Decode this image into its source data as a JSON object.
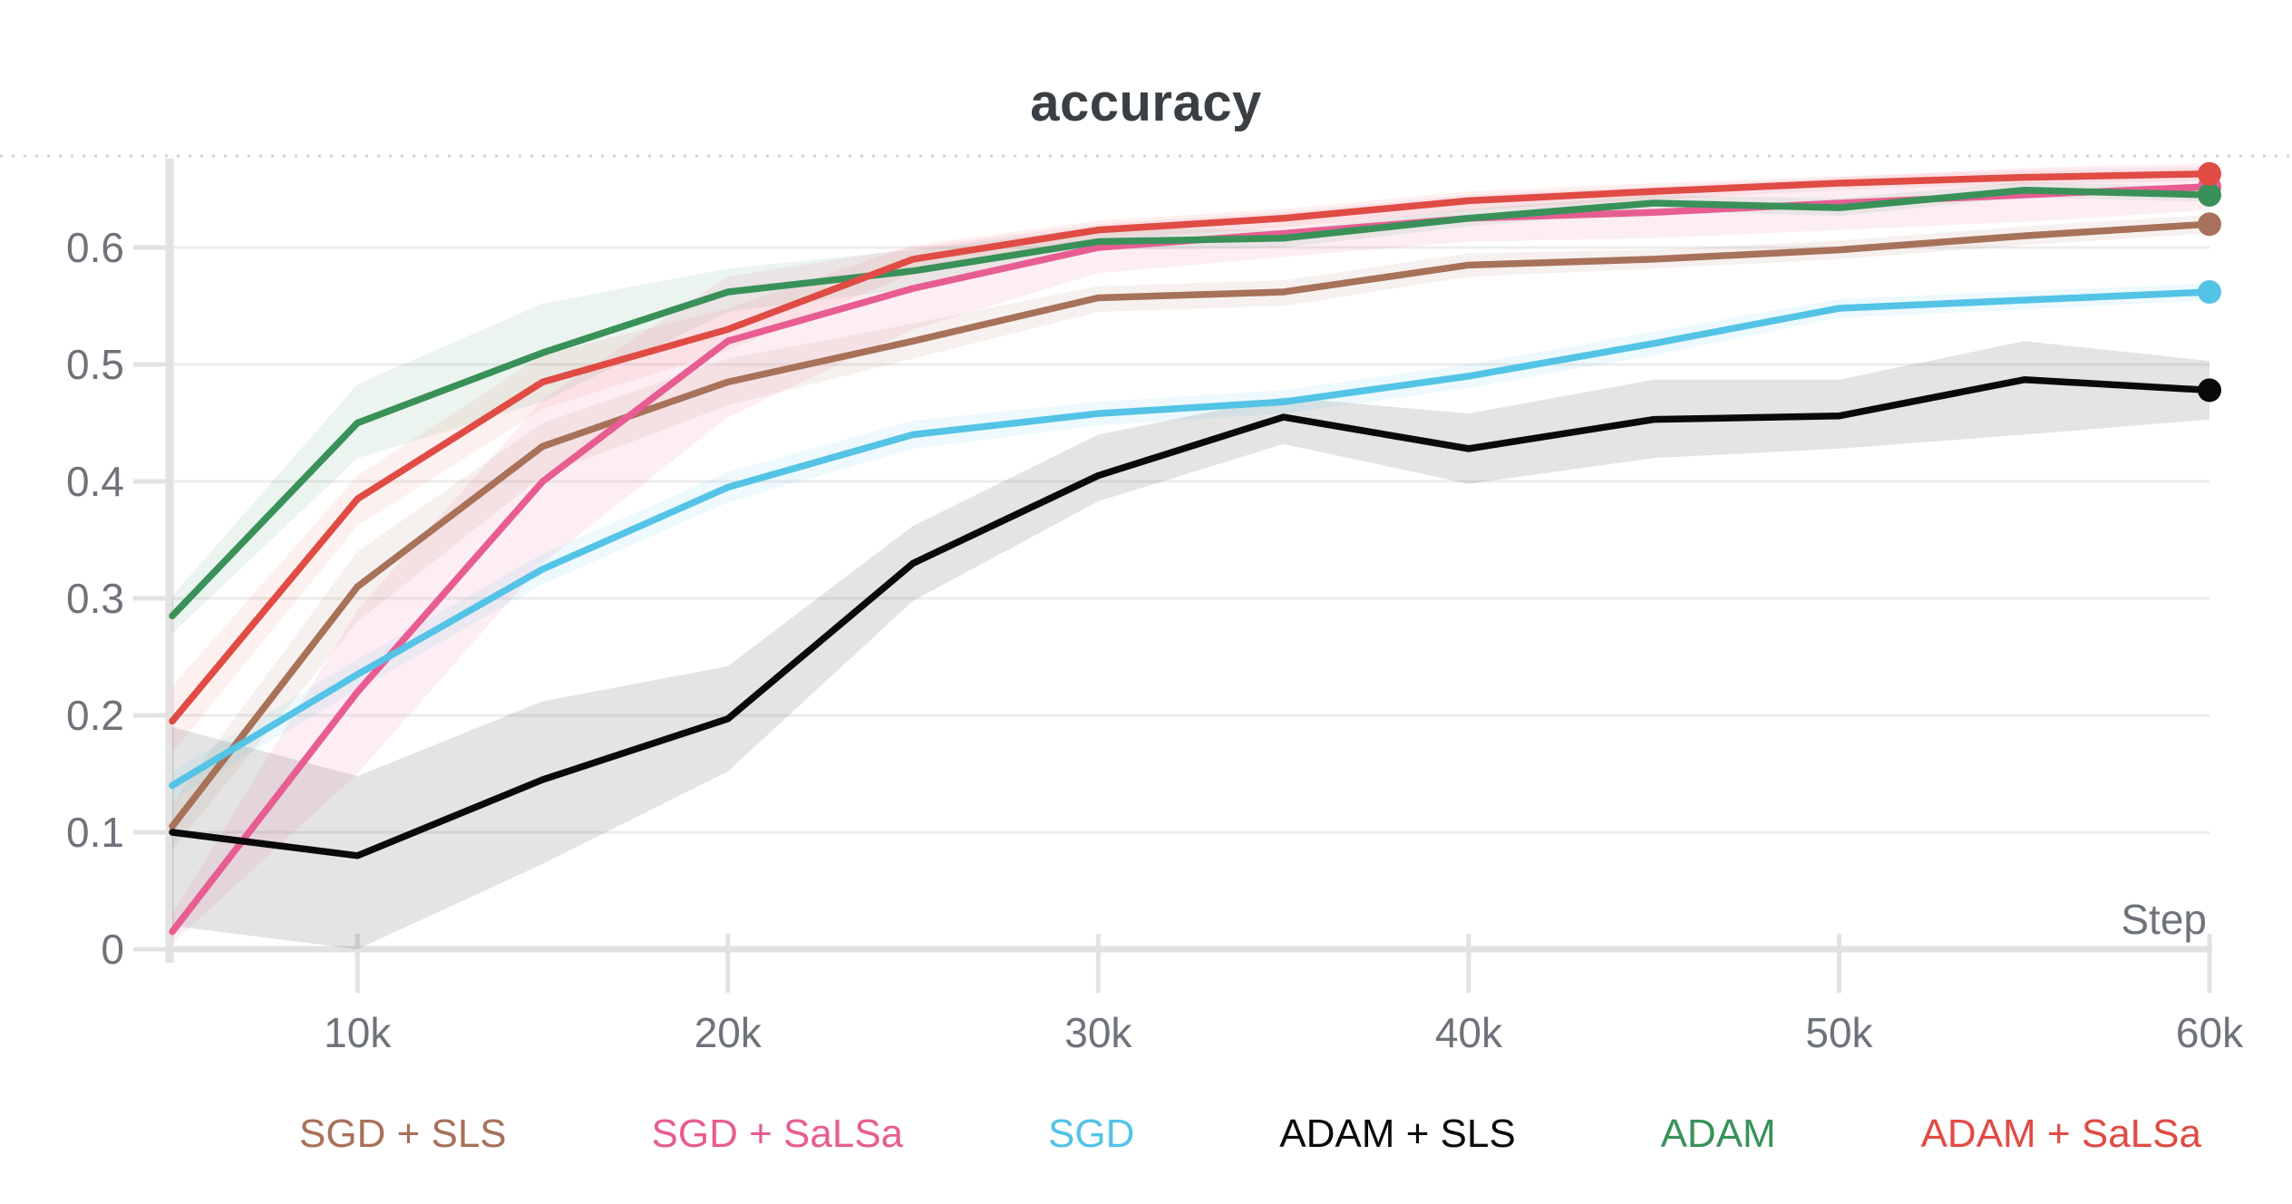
{
  "title": "accuracy",
  "axes": {
    "xlabel": "Step",
    "x_ticks": [
      {
        "label": "10k",
        "value": 10000
      },
      {
        "label": "20k",
        "value": 20000
      },
      {
        "label": "30k",
        "value": 30000
      },
      {
        "label": "40k",
        "value": 40000
      },
      {
        "label": "50k",
        "value": 50000
      },
      {
        "label": "60k",
        "value": 60000
      }
    ],
    "y_ticks": [
      {
        "label": "0",
        "value": 0
      },
      {
        "label": "0.1",
        "value": 0.1
      },
      {
        "label": "0.2",
        "value": 0.2
      },
      {
        "label": "0.3",
        "value": 0.3
      },
      {
        "label": "0.4",
        "value": 0.4
      },
      {
        "label": "0.5",
        "value": 0.5
      },
      {
        "label": "0.6",
        "value": 0.6
      }
    ],
    "x_range": [
      5000,
      60000
    ],
    "y_range": [
      0,
      0.68
    ],
    "tick_color": "#6e727a",
    "grid_color": "#ececec",
    "axis_color": "#e2e2e2"
  },
  "chart_data": {
    "type": "line",
    "title": "accuracy",
    "xlabel": "Step",
    "ylabel": "",
    "grid": true,
    "legend_position": "bottom",
    "end_markers": true,
    "x": [
      5000,
      10000,
      15000,
      20000,
      25000,
      30000,
      35000,
      40000,
      45000,
      50000,
      55000,
      60000
    ],
    "series": [
      {
        "id": "sgd-sls",
        "name": "SGD + SLS",
        "color": "#a8715a",
        "band_opacity": 0.1,
        "values": [
          0.105,
          0.31,
          0.43,
          0.485,
          0.52,
          0.557,
          0.562,
          0.585,
          0.59,
          0.598,
          0.61,
          0.62
        ],
        "band_lower": [
          0.085,
          0.28,
          0.405,
          0.465,
          0.505,
          0.545,
          0.55,
          0.575,
          0.582,
          0.59,
          0.602,
          0.612
        ],
        "band_upper": [
          0.125,
          0.34,
          0.45,
          0.505,
          0.535,
          0.567,
          0.572,
          0.595,
          0.598,
          0.606,
          0.618,
          0.628
        ]
      },
      {
        "id": "sgd-salsa",
        "name": "SGD + SaLSa",
        "color": "#e75d92",
        "band_opacity": 0.1,
        "values": [
          0.015,
          0.22,
          0.4,
          0.52,
          0.565,
          0.6,
          0.612,
          0.625,
          0.63,
          0.638,
          0.645,
          0.652
        ],
        "band_lower": [
          0.005,
          0.15,
          0.33,
          0.455,
          0.53,
          0.578,
          0.592,
          0.605,
          0.608,
          0.615,
          0.622,
          0.632
        ],
        "band_upper": [
          0.03,
          0.29,
          0.47,
          0.575,
          0.6,
          0.62,
          0.63,
          0.645,
          0.652,
          0.66,
          0.668,
          0.672
        ]
      },
      {
        "id": "sgd",
        "name": "SGD",
        "color": "#53c3e6",
        "band_opacity": 0.1,
        "values": [
          0.14,
          0.235,
          0.325,
          0.395,
          0.44,
          0.458,
          0.468,
          0.49,
          0.518,
          0.548,
          0.555,
          0.562
        ],
        "band_lower": [
          0.128,
          0.222,
          0.312,
          0.382,
          0.428,
          0.448,
          0.458,
          0.48,
          0.508,
          0.54,
          0.547,
          0.555
        ],
        "band_upper": [
          0.152,
          0.248,
          0.338,
          0.408,
          0.452,
          0.468,
          0.478,
          0.5,
          0.528,
          0.556,
          0.563,
          0.569
        ]
      },
      {
        "id": "adam-sls",
        "name": "ADAM + SLS",
        "color": "#0a0a0a",
        "band_opacity": 0.11,
        "values": [
          0.1,
          0.08,
          0.145,
          0.197,
          0.33,
          0.405,
          0.455,
          0.428,
          0.453,
          0.456,
          0.487,
          0.478
        ],
        "band_lower": [
          0.02,
          0.0,
          0.073,
          0.152,
          0.298,
          0.383,
          0.432,
          0.398,
          0.42,
          0.428,
          0.44,
          0.453
        ],
        "band_upper": [
          0.19,
          0.148,
          0.212,
          0.242,
          0.362,
          0.44,
          0.472,
          0.458,
          0.487,
          0.487,
          0.52,
          0.503
        ]
      },
      {
        "id": "adam",
        "name": "ADAM",
        "color": "#399159",
        "band_opacity": 0.1,
        "values": [
          0.285,
          0.45,
          0.51,
          0.562,
          0.58,
          0.605,
          0.608,
          0.625,
          0.638,
          0.634,
          0.649,
          0.645
        ],
        "band_lower": [
          0.27,
          0.42,
          0.468,
          0.545,
          0.565,
          0.598,
          0.6,
          0.618,
          0.632,
          0.627,
          0.643,
          0.639
        ],
        "band_upper": [
          0.302,
          0.483,
          0.552,
          0.582,
          0.598,
          0.617,
          0.615,
          0.633,
          0.645,
          0.642,
          0.656,
          0.652
        ]
      },
      {
        "id": "adam-salsa",
        "name": "ADAM + SaLSa",
        "color": "#e04b44",
        "band_opacity": 0.08,
        "values": [
          0.195,
          0.385,
          0.485,
          0.53,
          0.59,
          0.615,
          0.625,
          0.64,
          0.648,
          0.655,
          0.66,
          0.663
        ],
        "band_lower": [
          0.168,
          0.362,
          0.462,
          0.512,
          0.578,
          0.607,
          0.617,
          0.632,
          0.641,
          0.649,
          0.654,
          0.657
        ],
        "band_upper": [
          0.225,
          0.405,
          0.508,
          0.548,
          0.602,
          0.623,
          0.633,
          0.648,
          0.655,
          0.661,
          0.666,
          0.669
        ]
      }
    ]
  }
}
